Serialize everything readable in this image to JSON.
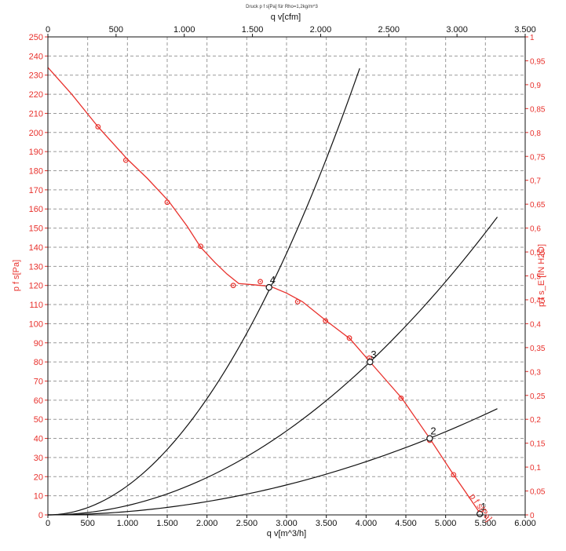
{
  "chart_data": {
    "type": "line",
    "title": "Druck p f s[Pa] für Rho=1,2kg/m^3",
    "xlabel": "q v[m^3/h]",
    "xlabel_top": "q v[cfm]",
    "ylabel": "p f s[Pa]",
    "ylabel_right": "p f s_E [IN H2O]",
    "xlim": [
      0,
      6000
    ],
    "ylim": [
      0,
      250
    ],
    "x2lim": [
      0,
      3500
    ],
    "y2lim": [
      0,
      1
    ],
    "grid": true,
    "x_ticks": [
      "0",
      "500",
      "1.000",
      "1.500",
      "2.000",
      "2.500",
      "3.000",
      "3.500",
      "4.000",
      "4.500",
      "5.000",
      "5.500",
      "6.000"
    ],
    "x_ticks_top": [
      "0",
      "500",
      "1.000",
      "1.500",
      "2.000",
      "2.500",
      "3.000",
      "3.500"
    ],
    "y_ticks": [
      "0",
      "10",
      "20",
      "30",
      "40",
      "50",
      "60",
      "70",
      "80",
      "90",
      "100",
      "110",
      "120",
      "130",
      "140",
      "150",
      "160",
      "170",
      "180",
      "190",
      "200",
      "210",
      "220",
      "230",
      "240",
      "250"
    ],
    "y_ticks_right": [
      "0",
      "0,05",
      "0,1",
      "0,15",
      "0,2",
      "0,25",
      "0,3",
      "0,35",
      "0,4",
      "0,45",
      "0,5",
      "0,55",
      "0,6",
      "0,65",
      "0,7",
      "0,75",
      "0,8",
      "0,85",
      "0,9",
      "0,95",
      "1"
    ],
    "fan_curve": {
      "label": "p f s[Pa]",
      "color": "#e8312c",
      "line": [
        {
          "x": 0,
          "y": 234
        },
        {
          "x": 300,
          "y": 220
        },
        {
          "x": 630,
          "y": 203
        },
        {
          "x": 1000,
          "y": 186
        },
        {
          "x": 1250,
          "y": 176
        },
        {
          "x": 1520,
          "y": 164
        },
        {
          "x": 1750,
          "y": 151
        },
        {
          "x": 1920,
          "y": 140
        },
        {
          "x": 2100,
          "y": 132
        },
        {
          "x": 2250,
          "y": 126
        },
        {
          "x": 2400,
          "y": 121
        },
        {
          "x": 2600,
          "y": 120.3
        },
        {
          "x": 2800,
          "y": 119.5
        },
        {
          "x": 3000,
          "y": 116
        },
        {
          "x": 3200,
          "y": 111.5
        },
        {
          "x": 3500,
          "y": 101.5
        },
        {
          "x": 3800,
          "y": 92
        },
        {
          "x": 4050,
          "y": 80
        },
        {
          "x": 4450,
          "y": 61
        },
        {
          "x": 4800,
          "y": 40
        },
        {
          "x": 5100,
          "y": 21
        },
        {
          "x": 5250,
          "y": 12
        },
        {
          "x": 5430,
          "y": 1
        }
      ],
      "measured_points": [
        {
          "x": 630,
          "y": 203
        },
        {
          "x": 980,
          "y": 185.5
        },
        {
          "x": 1500,
          "y": 163.5
        },
        {
          "x": 1920,
          "y": 140.5
        },
        {
          "x": 2330,
          "y": 120
        },
        {
          "x": 2670,
          "y": 122
        },
        {
          "x": 3140,
          "y": 111.5
        },
        {
          "x": 3490,
          "y": 101.5
        },
        {
          "x": 3790,
          "y": 92.5
        },
        {
          "x": 4040,
          "y": 82
        },
        {
          "x": 4440,
          "y": 61
        },
        {
          "x": 4800,
          "y": 39
        },
        {
          "x": 5100,
          "y": 21
        }
      ]
    },
    "system_curves": [
      {
        "color": "#111111",
        "k": 1.52e-05,
        "x_max": 3920
      },
      {
        "color": "#111111",
        "k": 4.88e-06,
        "x_max": 5650
      },
      {
        "color": "#111111",
        "k": 1.74e-06,
        "x_max": 5650
      }
    ],
    "operating_points": [
      {
        "label": "1",
        "x": 5430,
        "y": 0.5
      },
      {
        "label": "2",
        "x": 4800,
        "y": 40
      },
      {
        "label": "3",
        "x": 4050,
        "y": 80
      },
      {
        "label": "4",
        "x": 2780,
        "y": 119
      }
    ],
    "colors": {
      "red": "#e8312c",
      "black": "#111111",
      "grid": "#9a9a9a"
    }
  }
}
